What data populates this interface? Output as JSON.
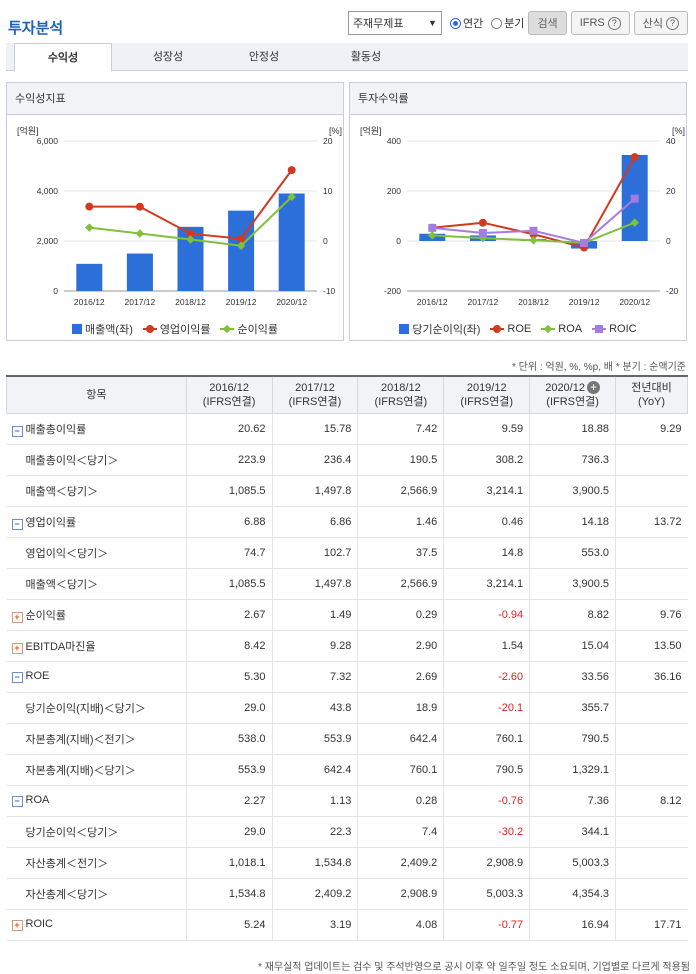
{
  "header": {
    "title": "투자분석",
    "report_select": "주재무제표",
    "radio_annual": "연간",
    "radio_quarter": "분기",
    "search_label": "검색",
    "ifrs_label": "IFRS",
    "formula_label": "산식"
  },
  "tabs": [
    {
      "label": "수익성"
    },
    {
      "label": "성장성"
    },
    {
      "label": "안정성"
    },
    {
      "label": "활동성"
    }
  ],
  "colors": {
    "bar": "#2c6fd8",
    "roe": "#d13a1f",
    "roa": "#7fc13a",
    "roic": "#a57de0",
    "operating": "#d13a1f",
    "net": "#7fc13a"
  },
  "chart_data": [
    {
      "type": "bar",
      "title": "수익성지표",
      "left_unit": "[억원]",
      "right_unit": "[%]",
      "categories": [
        "2016/12",
        "2017/12",
        "2018/12",
        "2019/12",
        "2020/12"
      ],
      "left_ticks": [
        "6,000",
        "4,000",
        "2,000",
        "0"
      ],
      "right_ticks": [
        "20",
        "10",
        "0",
        "-10"
      ],
      "ylim_left": [
        0,
        6000
      ],
      "ylim_right": [
        -10,
        20
      ],
      "series": [
        {
          "name": "매출액(좌)",
          "kind": "bar",
          "axis": "left",
          "values": [
            1085.5,
            1497.8,
            2566.9,
            3214.1,
            3900.5
          ]
        },
        {
          "name": "영업이익률",
          "kind": "line",
          "axis": "right",
          "marker": "circle",
          "values": [
            6.88,
            6.86,
            1.46,
            0.46,
            14.18
          ]
        },
        {
          "name": "순이익률",
          "kind": "line",
          "axis": "right",
          "marker": "diamond",
          "values": [
            2.67,
            1.49,
            0.29,
            -0.94,
            8.82
          ]
        }
      ]
    },
    {
      "type": "bar",
      "title": "투자수익률",
      "left_unit": "[억원]",
      "right_unit": "[%]",
      "categories": [
        "2016/12",
        "2017/12",
        "2018/12",
        "2019/12",
        "2020/12"
      ],
      "left_ticks": [
        "400",
        "200",
        "0",
        "-200"
      ],
      "right_ticks": [
        "40",
        "20",
        "0",
        "-20"
      ],
      "ylim_left": [
        -200,
        400
      ],
      "ylim_right": [
        -20,
        40
      ],
      "series": [
        {
          "name": "당기순이익(좌)",
          "kind": "bar",
          "axis": "left",
          "values": [
            29.0,
            22.3,
            7.4,
            -30.2,
            344.1
          ]
        },
        {
          "name": "ROE",
          "kind": "line",
          "axis": "right",
          "marker": "circle",
          "values": [
            5.3,
            7.32,
            2.69,
            -2.6,
            33.56
          ]
        },
        {
          "name": "ROA",
          "kind": "line",
          "axis": "right",
          "marker": "diamond",
          "values": [
            2.27,
            1.13,
            0.28,
            -0.76,
            7.36
          ]
        },
        {
          "name": "ROIC",
          "kind": "line",
          "axis": "right",
          "marker": "square",
          "values": [
            5.24,
            3.19,
            4.08,
            -0.77,
            16.94
          ]
        }
      ]
    }
  ],
  "unit_note": "* 단위 : 억원, %, %p, 배   * 분기 : 순액기준",
  "table": {
    "item_header": "항목",
    "columns": [
      {
        "period": "2016/12",
        "basis": "(IFRS연결)"
      },
      {
        "period": "2017/12",
        "basis": "(IFRS연결)"
      },
      {
        "period": "2018/12",
        "basis": "(IFRS연결)"
      },
      {
        "period": "2019/12",
        "basis": "(IFRS연결)"
      },
      {
        "period": "2020/12",
        "basis": "(IFRS연결)"
      }
    ],
    "yoy_header": "전년대비",
    "yoy_sub": "(YoY)",
    "rows": [
      {
        "label": "매출총이익률",
        "toggle": "minus",
        "values": [
          "20.62",
          "15.78",
          "7.42",
          "9.59",
          "18.88"
        ],
        "yoy": "9.29"
      },
      {
        "label": "매출총이익＜당기＞",
        "sub": true,
        "values": [
          "223.9",
          "236.4",
          "190.5",
          "308.2",
          "736.3"
        ],
        "yoy": ""
      },
      {
        "label": "매출액＜당기＞",
        "sub": true,
        "values": [
          "1,085.5",
          "1,497.8",
          "2,566.9",
          "3,214.1",
          "3,900.5"
        ],
        "yoy": ""
      },
      {
        "label": "영업이익률",
        "toggle": "minus",
        "values": [
          "6.88",
          "6.86",
          "1.46",
          "0.46",
          "14.18"
        ],
        "yoy": "13.72"
      },
      {
        "label": "영업이익＜당기＞",
        "sub": true,
        "values": [
          "74.7",
          "102.7",
          "37.5",
          "14.8",
          "553.0"
        ],
        "yoy": ""
      },
      {
        "label": "매출액＜당기＞",
        "sub": true,
        "values": [
          "1,085.5",
          "1,497.8",
          "2,566.9",
          "3,214.1",
          "3,900.5"
        ],
        "yoy": ""
      },
      {
        "label": "순이익률",
        "toggle": "plus",
        "values": [
          "2.67",
          "1.49",
          "0.29",
          "-0.94",
          "8.82"
        ],
        "yoy": "9.76"
      },
      {
        "label": "EBITDA마진율",
        "toggle": "plus",
        "values": [
          "8.42",
          "9.28",
          "2.90",
          "1.54",
          "15.04"
        ],
        "yoy": "13.50"
      },
      {
        "label": "ROE",
        "toggle": "minus",
        "values": [
          "5.30",
          "7.32",
          "2.69",
          "-2.60",
          "33.56"
        ],
        "yoy": "36.16"
      },
      {
        "label": "당기순이익(지배)＜당기＞",
        "sub": true,
        "values": [
          "29.0",
          "43.8",
          "18.9",
          "-20.1",
          "355.7"
        ],
        "yoy": ""
      },
      {
        "label": "자본총계(지배)＜전기＞",
        "sub": true,
        "values": [
          "538.0",
          "553.9",
          "642.4",
          "760.1",
          "790.5"
        ],
        "yoy": ""
      },
      {
        "label": "자본총계(지배)＜당기＞",
        "sub": true,
        "values": [
          "553.9",
          "642.4",
          "760.1",
          "790.5",
          "1,329.1"
        ],
        "yoy": ""
      },
      {
        "label": "ROA",
        "toggle": "minus",
        "values": [
          "2.27",
          "1.13",
          "0.28",
          "-0.76",
          "7.36"
        ],
        "yoy": "8.12"
      },
      {
        "label": "당기순이익＜당기＞",
        "sub": true,
        "values": [
          "29.0",
          "22.3",
          "7.4",
          "-30.2",
          "344.1"
        ],
        "yoy": ""
      },
      {
        "label": "자산총계＜전기＞",
        "sub": true,
        "values": [
          "1,018.1",
          "1,534.8",
          "2,409.2",
          "2,908.9",
          "5,003.3"
        ],
        "yoy": ""
      },
      {
        "label": "자산총계＜당기＞",
        "sub": true,
        "values": [
          "1,534.8",
          "2,409.2",
          "2,908.9",
          "5,003.3",
          "4,354.3"
        ],
        "yoy": ""
      },
      {
        "label": "ROIC",
        "toggle": "plus",
        "values": [
          "5.24",
          "3.19",
          "4.08",
          "-0.77",
          "16.94"
        ],
        "yoy": "17.71"
      }
    ]
  },
  "footnote": "* 재무실적 업데이트는 검수 및 주석반영으로 공시 이후 약 일주일 정도 소요되며, 기업별로 다르게 적용됨"
}
